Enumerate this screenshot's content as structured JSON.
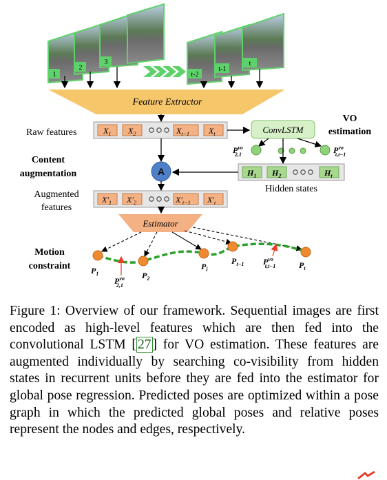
{
  "frames": {
    "left_labels": [
      "1",
      "2",
      "3"
    ],
    "right_labels": [
      "t-2",
      "t-1",
      "t"
    ]
  },
  "feature_extractor": "Feature Extractor",
  "raw_features": {
    "label": "Raw features",
    "cells": [
      "X",
      "X",
      "X",
      "X"
    ],
    "subs": [
      "1",
      "2",
      "t−1",
      "t"
    ]
  },
  "convlstm": "ConvLSTM",
  "vo_estimation": [
    "VO",
    "estimation"
  ],
  "vo_nodes": {
    "left": {
      "base": "P",
      "sup": "vo",
      "sub": "2,1"
    },
    "right": {
      "base": "P",
      "sup": "vo",
      "sub": "t,t−1"
    }
  },
  "content_augmentation": [
    "Content",
    "augmentation"
  ],
  "augment_node": "A",
  "hidden": {
    "cells": [
      "H",
      "H",
      "H"
    ],
    "subs": [
      "1",
      "2",
      "t"
    ],
    "label": "Hidden states"
  },
  "augmented_features": {
    "label": [
      "Augmented",
      "features"
    ],
    "cells": [
      "X′",
      "X′",
      "X′",
      "X′"
    ],
    "subs": [
      "1",
      "2",
      "t−1",
      "t"
    ]
  },
  "estimator": "Estimator",
  "motion_constraint": [
    "Motion",
    "constraint"
  ],
  "poses": [
    {
      "base": "P",
      "sub": "1"
    },
    {
      "base": "P",
      "sub": "2"
    },
    {
      "base": "P",
      "sub": "i"
    },
    {
      "base": "P",
      "sub": "t−1"
    },
    {
      "base": "P",
      "sub": "t"
    }
  ],
  "edge_labels": [
    {
      "base": "P",
      "sup": "vo",
      "sub": "2,1"
    },
    {
      "base": "P",
      "sup": "vo",
      "sub": "t,t−1"
    }
  ],
  "caption": {
    "prefix": "Figure 1: Overview of our framework. Sequential images are first encoded as high-level features which are then fed into the convolutional LSTM [",
    "ref": "27",
    "suffix": "] for VO estimation. These features are augmented individually by searching co-visibility from hidden states in recurrent units before they are fed into the estimator for global pose regression. Predicted poses are optimized within a pose graph in which the predicted global poses and relative poses represent the nodes and edges, respectively."
  },
  "colors": {
    "frame_border": "#5fd16a",
    "extractor": "#f6c66a",
    "feature_cell": "#f4b183",
    "convlstm": "#d8f0c8",
    "node_green": "#8fd27a",
    "hidden_cell": "#a8d88e",
    "augment": "#4f7fc6",
    "estimator": "#f4b183",
    "pose_node": "#f08a30",
    "motion_line": "#2aa12a",
    "edge_arrow": "#e8402a"
  }
}
